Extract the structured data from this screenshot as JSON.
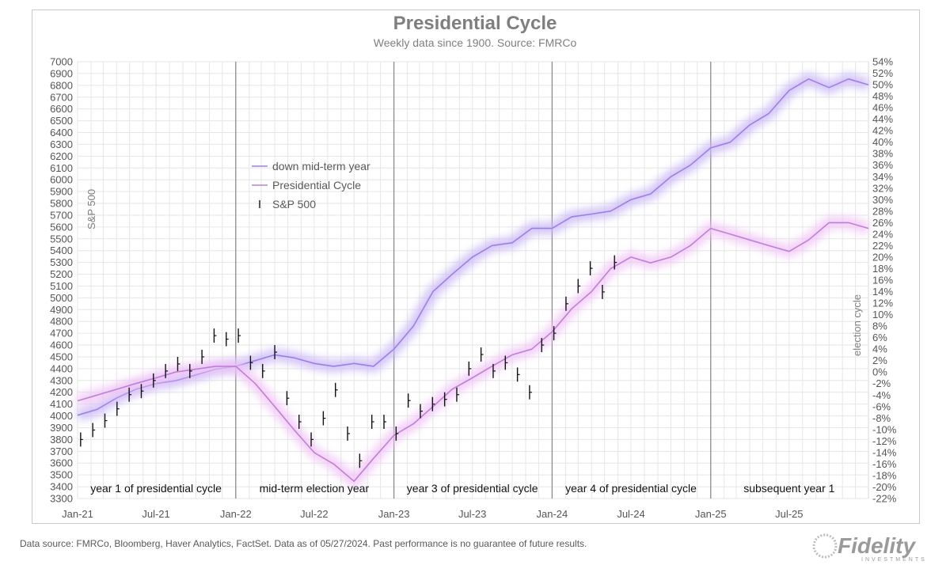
{
  "header": {
    "title": "Presidential Cycle",
    "subtitle": "Weekly data since 1900. Source: FMRCo"
  },
  "footer": {
    "note": "Data source: FMRCo, Bloomberg, Haver Analytics, FactSet. Data as of 05/27/2024. Past performance is no guarantee of future results."
  },
  "brand": {
    "name": "Fidelity",
    "tagline": "INVESTMENTS"
  },
  "colors": {
    "down_midterm": "#9d7ee8",
    "down_midterm_glow": "#c8b6f5",
    "presidential": "#c07ed8",
    "presidential_glow": "#efc3f5",
    "sp500": "#111111",
    "grid": "#e6e6e6",
    "divider": "#8c8c8c"
  },
  "chart_data": {
    "type": "line",
    "title": "Presidential Cycle",
    "subtitle": "Weekly data since 1900. Source: FMRCo",
    "y_left_label": "S&P 500",
    "y_right_label": "election cycle",
    "y_left_range": [
      3300,
      7000
    ],
    "y_left_ticks": [
      "3300",
      "3400",
      "3500",
      "3600",
      "3700",
      "3800",
      "3900",
      "4000",
      "4100",
      "4200",
      "4300",
      "4400",
      "4500",
      "4600",
      "4700",
      "4800",
      "4900",
      "5000",
      "5100",
      "5200",
      "5300",
      "5400",
      "5500",
      "5600",
      "5700",
      "5800",
      "5900",
      "6000",
      "6100",
      "6200",
      "6300",
      "6400",
      "6500",
      "6600",
      "6700",
      "6800",
      "6900",
      "7000"
    ],
    "y_right_range": [
      -22,
      54
    ],
    "y_right_ticks": [
      "-22%",
      "-20%",
      "-18%",
      "-16%",
      "-14%",
      "-12%",
      "-10%",
      "-8%",
      "-6%",
      "-4%",
      "-2%",
      "0%",
      "2%",
      "4%",
      "6%",
      "8%",
      "10%",
      "12%",
      "14%",
      "16%",
      "18%",
      "20%",
      "22%",
      "24%",
      "26%",
      "28%",
      "30%",
      "32%",
      "34%",
      "36%",
      "38%",
      "40%",
      "42%",
      "44%",
      "46%",
      "48%",
      "50%",
      "52%",
      "54%"
    ],
    "x_range": [
      "2021-01-01",
      "2025-12-31"
    ],
    "x_ticks": [
      {
        "label": "Jan-21",
        "date": "2021-01-01"
      },
      {
        "label": "Jul-21",
        "date": "2021-07-01"
      },
      {
        "label": "Jan-22",
        "date": "2022-01-01"
      },
      {
        "label": "Jul-22",
        "date": "2022-07-01"
      },
      {
        "label": "Jan-23",
        "date": "2023-01-01"
      },
      {
        "label": "Jul-23",
        "date": "2023-07-01"
      },
      {
        "label": "Jan-24",
        "date": "2024-01-01"
      },
      {
        "label": "Jul-24",
        "date": "2024-07-01"
      },
      {
        "label": "Jan-25",
        "date": "2025-01-01"
      },
      {
        "label": "Jul-25",
        "date": "2025-07-01"
      }
    ],
    "dividers": [
      "2022-01-01",
      "2023-01-01",
      "2024-01-01",
      "2025-01-01"
    ],
    "segments": [
      {
        "label": "year 1 of presidential cycle",
        "date": "2021-07-01"
      },
      {
        "label": "mid-term election year",
        "date": "2022-07-01"
      },
      {
        "label": "year 3 of presidential cycle",
        "date": "2023-07-01"
      },
      {
        "label": "year 4 of presidential cycle",
        "date": "2024-07-01"
      },
      {
        "label": "subsequent year 1",
        "date": "2025-07-01"
      }
    ],
    "grid": true,
    "legend": [
      {
        "name": "down mid-term year",
        "key": "down_midterm"
      },
      {
        "name": "Presidential Cycle",
        "key": "presidential"
      },
      {
        "name": "S&P 500",
        "key": "sp500"
      }
    ],
    "series": [
      {
        "name": "down mid-term year",
        "axis": "right",
        "x": [
          "2021-01-01",
          "2021-02-15",
          "2021-04-01",
          "2021-05-15",
          "2021-07-01",
          "2021-08-15",
          "2021-10-01",
          "2021-11-15",
          "2022-01-01",
          "2022-02-15",
          "2022-04-01",
          "2022-05-15",
          "2022-07-01",
          "2022-08-15",
          "2022-10-01",
          "2022-11-15",
          "2023-01-01",
          "2023-02-15",
          "2023-04-01",
          "2023-05-15",
          "2023-07-01",
          "2023-08-15",
          "2023-10-01",
          "2023-11-15",
          "2024-01-01",
          "2024-02-15",
          "2024-04-01",
          "2024-05-15",
          "2024-07-01",
          "2024-08-15",
          "2024-10-01",
          "2024-11-15",
          "2025-01-01",
          "2025-02-15",
          "2025-04-01",
          "2025-05-15",
          "2025-07-01",
          "2025-08-15",
          "2025-10-01",
          "2025-11-15",
          "2025-12-31"
        ],
        "values": [
          -7.5,
          -6.5,
          -4.5,
          -3.0,
          -2.0,
          -1.5,
          -0.5,
          0.5,
          1.0,
          2.0,
          3.0,
          2.5,
          1.5,
          1.0,
          1.5,
          1.0,
          4.0,
          8.0,
          14.0,
          17.0,
          20.0,
          22.0,
          22.5,
          25.0,
          25.0,
          27.0,
          27.5,
          28.0,
          30.0,
          31.0,
          34.0,
          36.0,
          39.0,
          40.0,
          43.0,
          45.0,
          49.0,
          51.0,
          49.5,
          51.0,
          50.0
        ]
      },
      {
        "name": "Presidential Cycle",
        "axis": "right",
        "x": [
          "2021-01-01",
          "2021-02-15",
          "2021-04-01",
          "2021-05-15",
          "2021-07-01",
          "2021-08-15",
          "2021-10-01",
          "2021-11-15",
          "2022-01-01",
          "2022-02-15",
          "2022-04-01",
          "2022-05-15",
          "2022-07-01",
          "2022-08-15",
          "2022-10-01",
          "2022-11-15",
          "2023-01-01",
          "2023-02-15",
          "2023-04-01",
          "2023-05-15",
          "2023-07-01",
          "2023-08-15",
          "2023-10-01",
          "2023-11-15",
          "2024-01-01",
          "2024-02-15",
          "2024-04-01",
          "2024-05-15",
          "2024-07-01",
          "2024-08-15",
          "2024-10-01",
          "2024-11-15",
          "2025-01-01",
          "2025-02-15",
          "2025-04-01",
          "2025-05-15",
          "2025-07-01",
          "2025-08-15",
          "2025-10-01",
          "2025-11-15",
          "2025-12-31"
        ],
        "values": [
          -5.0,
          -4.0,
          -3.0,
          -2.0,
          -1.0,
          0.0,
          0.5,
          1.0,
          1.0,
          -2.0,
          -6.0,
          -10.0,
          -14.0,
          -16.0,
          -19.0,
          -15.0,
          -11.0,
          -9.0,
          -6.0,
          -3.0,
          -1.0,
          1.0,
          3.0,
          4.0,
          7.0,
          11.0,
          14.0,
          18.0,
          20.0,
          19.0,
          20.0,
          22.0,
          25.0,
          24.0,
          23.0,
          22.0,
          21.0,
          23.0,
          26.0,
          26.0,
          25.0
        ]
      },
      {
        "name": "S&P 500",
        "axis": "left",
        "x": [
          "2021-01-08",
          "2021-02-05",
          "2021-03-05",
          "2021-04-02",
          "2021-04-30",
          "2021-05-28",
          "2021-06-25",
          "2021-07-23",
          "2021-08-20",
          "2021-09-17",
          "2021-10-15",
          "2021-11-12",
          "2021-12-10",
          "2022-01-07",
          "2022-02-04",
          "2022-03-04",
          "2022-04-01",
          "2022-04-29",
          "2022-05-27",
          "2022-06-24",
          "2022-07-22",
          "2022-08-19",
          "2022-09-16",
          "2022-10-14",
          "2022-11-11",
          "2022-12-09",
          "2023-01-06",
          "2023-02-03",
          "2023-03-03",
          "2023-03-31",
          "2023-04-28",
          "2023-05-26",
          "2023-06-23",
          "2023-07-21",
          "2023-08-18",
          "2023-09-15",
          "2023-10-13",
          "2023-11-10",
          "2023-12-08",
          "2024-01-05",
          "2024-02-02",
          "2024-03-01",
          "2024-03-29",
          "2024-04-26",
          "2024-05-24"
        ],
        "values": [
          3800,
          3880,
          3960,
          4060,
          4180,
          4210,
          4300,
          4380,
          4440,
          4380,
          4500,
          4680,
          4650,
          4680,
          4450,
          4380,
          4540,
          4150,
          3950,
          3800,
          3980,
          4220,
          3850,
          3620,
          3950,
          3950,
          3850,
          4130,
          4040,
          4100,
          4140,
          4180,
          4400,
          4520,
          4380,
          4450,
          4350,
          4200,
          4600,
          4700,
          4950,
          5100,
          5250,
          5050,
          5300
        ]
      }
    ]
  }
}
